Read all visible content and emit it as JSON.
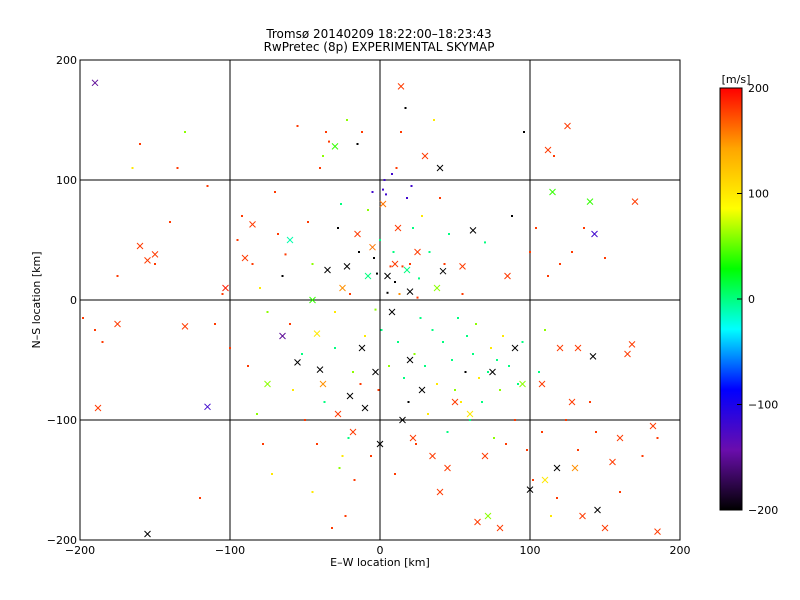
{
  "chart_data": {
    "type": "scatter",
    "title": "Tromsø 20140209 18:22:00–18:23:43",
    "subtitle": "RwPretec (8p) EXPERIMENTAL SKYMAP",
    "xlabel": "E–W location [km]",
    "ylabel": "N–S location [km]",
    "xlim": [
      -200,
      200
    ],
    "ylim": [
      -200,
      200
    ],
    "xticks": [
      -200,
      -100,
      0,
      100,
      200
    ],
    "yticks": [
      -200,
      -100,
      0,
      100,
      200
    ],
    "grid": true,
    "colorbar": {
      "label": "[m/s]",
      "range": [
        -200,
        200
      ],
      "ticks": [
        200,
        100,
        0,
        -100,
        -200
      ],
      "colormap": [
        "#000000",
        "#6a0dad",
        "#0000ff",
        "#00ffff",
        "#00ff00",
        "#ffff00",
        "#ffa500",
        "#ff0000"
      ]
    },
    "points_cross": [
      [
        -190,
        181,
        -150
      ],
      [
        -155,
        -195,
        -200
      ],
      [
        -115,
        -89,
        -120
      ],
      [
        -188,
        -90,
        180
      ],
      [
        -175,
        -20,
        180
      ],
      [
        -160,
        45,
        180
      ],
      [
        -150,
        38,
        180
      ],
      [
        -155,
        33,
        180
      ],
      [
        -130,
        -22,
        180
      ],
      [
        -103,
        10,
        190
      ],
      [
        -85,
        63,
        180
      ],
      [
        -90,
        35,
        180
      ],
      [
        -75,
        -70,
        60
      ],
      [
        -65,
        -30,
        -150
      ],
      [
        -60,
        50,
        -10
      ],
      [
        -55,
        -52,
        -200
      ],
      [
        -45,
        0,
        40
      ],
      [
        -42,
        -28,
        100
      ],
      [
        -40,
        -58,
        -200
      ],
      [
        -38,
        -70,
        150
      ],
      [
        -35,
        25,
        -200
      ],
      [
        -30,
        128,
        40
      ],
      [
        -28,
        -95,
        180
      ],
      [
        -25,
        10,
        150
      ],
      [
        -22,
        28,
        -200
      ],
      [
        -20,
        -80,
        -200
      ],
      [
        -18,
        -110,
        180
      ],
      [
        -15,
        55,
        180
      ],
      [
        -12,
        -40,
        -200
      ],
      [
        -10,
        -90,
        -200
      ],
      [
        -8,
        20,
        0
      ],
      [
        -5,
        44,
        160
      ],
      [
        -3,
        -60,
        -200
      ],
      [
        0,
        -120,
        -200
      ],
      [
        2,
        80,
        160
      ],
      [
        5,
        20,
        -200
      ],
      [
        8,
        -10,
        -200
      ],
      [
        10,
        30,
        180
      ],
      [
        12,
        60,
        180
      ],
      [
        14,
        178,
        180
      ],
      [
        15,
        -100,
        -200
      ],
      [
        18,
        25,
        0
      ],
      [
        20,
        7,
        -200
      ],
      [
        20,
        -50,
        -200
      ],
      [
        22,
        -115,
        180
      ],
      [
        25,
        40,
        180
      ],
      [
        28,
        -75,
        -200
      ],
      [
        30,
        120,
        180
      ],
      [
        35,
        -130,
        180
      ],
      [
        38,
        10,
        60
      ],
      [
        40,
        110,
        -200
      ],
      [
        40,
        -160,
        180
      ],
      [
        42,
        24,
        -200
      ],
      [
        45,
        -140,
        180
      ],
      [
        50,
        -85,
        180
      ],
      [
        55,
        28,
        180
      ],
      [
        60,
        -95,
        100
      ],
      [
        62,
        58,
        -200
      ],
      [
        65,
        -185,
        180
      ],
      [
        70,
        -130,
        180
      ],
      [
        72,
        -180,
        60
      ],
      [
        75,
        -60,
        -200
      ],
      [
        80,
        -190,
        180
      ],
      [
        85,
        20,
        180
      ],
      [
        90,
        -40,
        -200
      ],
      [
        95,
        -70,
        60
      ],
      [
        100,
        -158,
        -200
      ],
      [
        108,
        -70,
        180
      ],
      [
        110,
        -150,
        100
      ],
      [
        112,
        125,
        180
      ],
      [
        115,
        90,
        40
      ],
      [
        118,
        -140,
        -200
      ],
      [
        120,
        -40,
        180
      ],
      [
        125,
        145,
        180
      ],
      [
        128,
        -85,
        180
      ],
      [
        130,
        -140,
        150
      ],
      [
        132,
        -40,
        180
      ],
      [
        135,
        -180,
        180
      ],
      [
        140,
        82,
        40
      ],
      [
        142,
        -47,
        -200
      ],
      [
        143,
        55,
        -120
      ],
      [
        145,
        -175,
        -200
      ],
      [
        150,
        -190,
        180
      ],
      [
        155,
        -135,
        180
      ],
      [
        160,
        -115,
        180
      ],
      [
        165,
        -45,
        180
      ],
      [
        168,
        -37,
        180
      ],
      [
        170,
        82,
        180
      ],
      [
        182,
        -105,
        180
      ],
      [
        185,
        -193,
        180
      ]
    ],
    "points_dot": [
      [
        -175,
        20,
        180
      ],
      [
        -160,
        130,
        180
      ],
      [
        -150,
        30,
        180
      ],
      [
        -140,
        65,
        180
      ],
      [
        -165,
        110,
        100
      ],
      [
        -110,
        -20,
        180
      ],
      [
        -105,
        5,
        180
      ],
      [
        -100,
        -40,
        180
      ],
      [
        -95,
        50,
        180
      ],
      [
        -85,
        30,
        180
      ],
      [
        -80,
        10,
        100
      ],
      [
        -75,
        -10,
        60
      ],
      [
        -70,
        90,
        180
      ],
      [
        -65,
        20,
        -200
      ],
      [
        -60,
        -20,
        180
      ],
      [
        -58,
        -75,
        100
      ],
      [
        -55,
        145,
        180
      ],
      [
        -50,
        -100,
        180
      ],
      [
        -45,
        30,
        60
      ],
      [
        -45,
        -160,
        100
      ],
      [
        -40,
        110,
        180
      ],
      [
        -38,
        120,
        60
      ],
      [
        -36,
        140,
        180
      ],
      [
        -34,
        132,
        180
      ],
      [
        -32,
        -190,
        180
      ],
      [
        -30,
        -10,
        100
      ],
      [
        -30,
        -40,
        0
      ],
      [
        -28,
        60,
        -200
      ],
      [
        -26,
        80,
        0
      ],
      [
        -25,
        -130,
        100
      ],
      [
        -23,
        -180,
        180
      ],
      [
        -22,
        150,
        60
      ],
      [
        -20,
        5,
        180
      ],
      [
        -18,
        -60,
        60
      ],
      [
        -17,
        -150,
        180
      ],
      [
        -15,
        130,
        -200
      ],
      [
        -14,
        40,
        -200
      ],
      [
        -13,
        -70,
        180
      ],
      [
        -12,
        140,
        180
      ],
      [
        -10,
        -30,
        100
      ],
      [
        -8,
        75,
        60
      ],
      [
        -6,
        -130,
        180
      ],
      [
        -5,
        90,
        -120
      ],
      [
        -4,
        35,
        -200
      ],
      [
        -3,
        -8,
        60
      ],
      [
        -2,
        22,
        -200
      ],
      [
        -1,
        -75,
        180
      ],
      [
        0,
        50,
        0
      ],
      [
        1,
        -25,
        0
      ],
      [
        2,
        92,
        -120
      ],
      [
        3,
        100,
        -120
      ],
      [
        4,
        88,
        -120
      ],
      [
        5,
        6,
        -200
      ],
      [
        6,
        -55,
        60
      ],
      [
        7,
        28,
        180
      ],
      [
        8,
        105,
        -120
      ],
      [
        9,
        40,
        0
      ],
      [
        10,
        -145,
        180
      ],
      [
        10,
        15,
        -200
      ],
      [
        11,
        110,
        180
      ],
      [
        12,
        -35,
        0
      ],
      [
        13,
        5,
        150
      ],
      [
        14,
        140,
        180
      ],
      [
        15,
        28,
        180
      ],
      [
        16,
        -65,
        0
      ],
      [
        17,
        160,
        -200
      ],
      [
        18,
        85,
        -120
      ],
      [
        19,
        -85,
        -200
      ],
      [
        20,
        30,
        180
      ],
      [
        21,
        95,
        -120
      ],
      [
        22,
        60,
        0
      ],
      [
        23,
        -45,
        60
      ],
      [
        24,
        -120,
        180
      ],
      [
        25,
        2,
        180
      ],
      [
        26,
        18,
        0
      ],
      [
        27,
        -15,
        0
      ],
      [
        28,
        70,
        100
      ],
      [
        30,
        -55,
        0
      ],
      [
        32,
        -95,
        100
      ],
      [
        33,
        40,
        0
      ],
      [
        35,
        -25,
        0
      ],
      [
        36,
        150,
        100
      ],
      [
        38,
        -70,
        100
      ],
      [
        40,
        85,
        180
      ],
      [
        42,
        -35,
        0
      ],
      [
        43,
        30,
        180
      ],
      [
        45,
        -110,
        0
      ],
      [
        46,
        55,
        0
      ],
      [
        48,
        -50,
        0
      ],
      [
        50,
        -75,
        60
      ],
      [
        52,
        -15,
        0
      ],
      [
        54,
        -85,
        100
      ],
      [
        55,
        5,
        180
      ],
      [
        57,
        -60,
        -200
      ],
      [
        58,
        -30,
        0
      ],
      [
        60,
        -100,
        0
      ],
      [
        62,
        -45,
        0
      ],
      [
        64,
        -20,
        60
      ],
      [
        66,
        -65,
        100
      ],
      [
        68,
        -85,
        0
      ],
      [
        70,
        48,
        0
      ],
      [
        72,
        -60,
        0
      ],
      [
        74,
        -40,
        100
      ],
      [
        76,
        -115,
        60
      ],
      [
        78,
        -50,
        0
      ],
      [
        80,
        -75,
        60
      ],
      [
        82,
        -30,
        100
      ],
      [
        84,
        -120,
        180
      ],
      [
        86,
        -55,
        0
      ],
      [
        88,
        70,
        -200
      ],
      [
        90,
        -100,
        180
      ],
      [
        92,
        -70,
        0
      ],
      [
        95,
        -35,
        0
      ],
      [
        96,
        140,
        -200
      ],
      [
        98,
        -125,
        180
      ],
      [
        100,
        40,
        180
      ],
      [
        102,
        -150,
        180
      ],
      [
        104,
        60,
        180
      ],
      [
        106,
        -60,
        0
      ],
      [
        108,
        -110,
        180
      ],
      [
        110,
        -25,
        60
      ],
      [
        112,
        20,
        180
      ],
      [
        114,
        -180,
        100
      ],
      [
        116,
        120,
        180
      ],
      [
        118,
        -165,
        180
      ],
      [
        120,
        30,
        180
      ],
      [
        124,
        -100,
        180
      ],
      [
        128,
        40,
        180
      ],
      [
        132,
        -125,
        180
      ],
      [
        136,
        60,
        180
      ],
      [
        140,
        -85,
        180
      ],
      [
        144,
        -110,
        180
      ],
      [
        150,
        35,
        180
      ],
      [
        160,
        -160,
        180
      ],
      [
        175,
        -130,
        180
      ],
      [
        185,
        -115,
        180
      ],
      [
        -198,
        -15,
        180
      ],
      [
        -190,
        -25,
        180
      ],
      [
        -185,
        -35,
        180
      ],
      [
        -120,
        -165,
        180
      ],
      [
        -135,
        110,
        180
      ],
      [
        -130,
        140,
        60
      ],
      [
        -115,
        95,
        180
      ],
      [
        -92,
        70,
        180
      ],
      [
        -88,
        -55,
        180
      ],
      [
        -82,
        -95,
        60
      ],
      [
        -78,
        -120,
        180
      ],
      [
        -72,
        -145,
        100
      ],
      [
        -68,
        55,
        180
      ],
      [
        -63,
        38,
        180
      ],
      [
        -52,
        -45,
        0
      ],
      [
        -48,
        65,
        180
      ],
      [
        -42,
        -120,
        180
      ],
      [
        -37,
        -85,
        0
      ],
      [
        -27,
        -140,
        60
      ],
      [
        -21,
        -115,
        0
      ]
    ]
  }
}
